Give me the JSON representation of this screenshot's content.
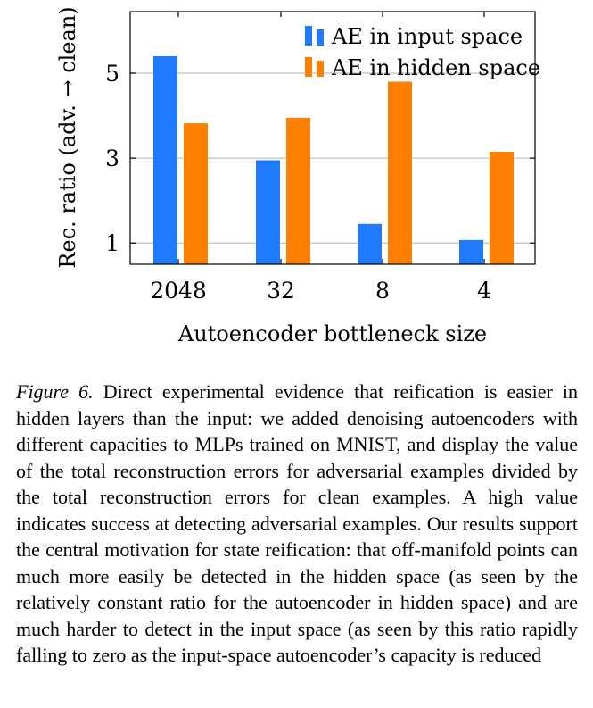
{
  "chart_data": {
    "type": "bar",
    "categories": [
      "2048",
      "32",
      "8",
      "4"
    ],
    "series": [
      {
        "name": "AE in input space",
        "color": "#1f7aff",
        "values": [
          5.4,
          2.95,
          1.45,
          1.07
        ]
      },
      {
        "name": "AE in hidden space",
        "color": "#ff8000",
        "values": [
          3.82,
          3.95,
          4.8,
          3.15
        ]
      }
    ],
    "xlabel": "Autoencoder bottleneck size",
    "ylabel": "Rec. ratio (adv. → clean)",
    "ylim": [
      0.5,
      6.45
    ],
    "yticks": [
      1,
      3,
      5
    ],
    "grid": "horizontal",
    "legend_position": "top-right"
  },
  "caption": {
    "label": "Figure 6.",
    "text": "Direct experimental evidence that reification is easier in hidden layers than the input: we added denoising autoencoders with different capacities to MLPs trained on MNIST, and display the value of the total reconstruction errors for adversarial examples divided by the total reconstruction errors for clean examples. A high value indicates success at detecting adversarial examples. Our results support the central motivation for state reification: that off-manifold points can much more easily be detected in the hidden space (as seen by the relatively constant ratio for the autoencoder in hidden space) and are much harder to detect in the input space (as seen by this ratio rapidly falling to zero as the input-space autoencoder’s capacity is reduced"
  }
}
